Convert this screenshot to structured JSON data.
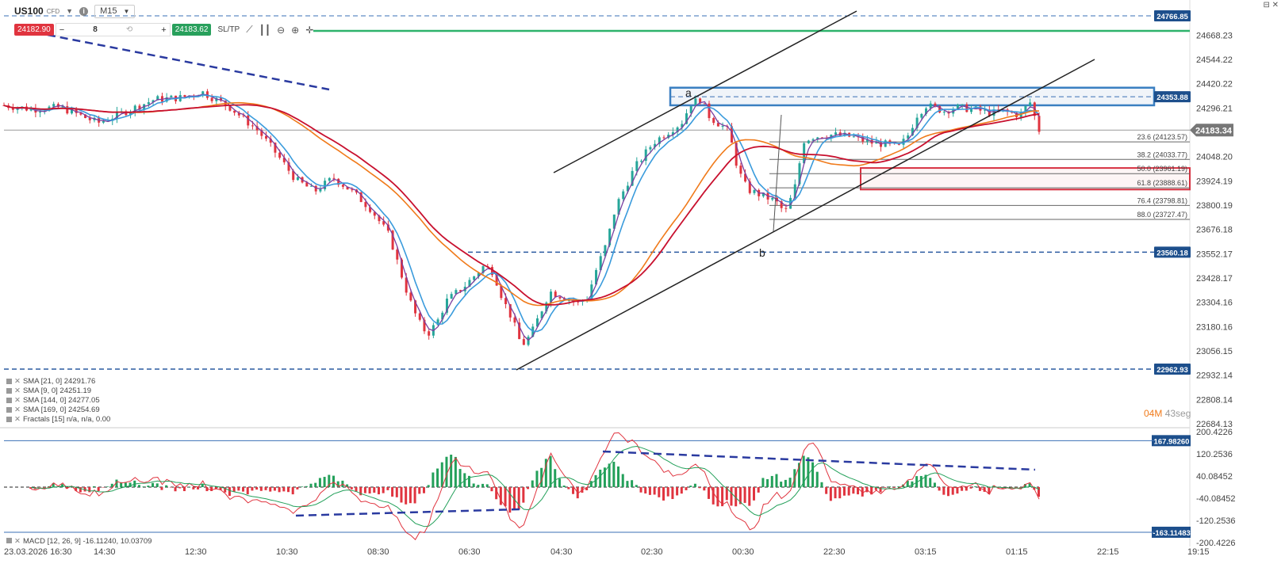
{
  "toolbar": {
    "symbol": "US100",
    "symbol_type": "CFD",
    "timeframe": "M15",
    "sell_price": "24182.90",
    "buy_price": "24183.62",
    "quantity": "8",
    "sltp_label": "SL/TP",
    "minus": "−",
    "plus": "+"
  },
  "window_controls": "⊟ ✕",
  "legend": [
    "SMA [21, 0] 24291.76",
    "SMA [9, 0] 24251.19",
    "SMA [144, 0] 24277.05",
    "SMA [169, 0] 24254.69",
    "Fractals [15] n/a, n/a, 0.00"
  ],
  "macd_legend": "MACD [12, 26, 9] -16.11240, 10.03709",
  "countdown": {
    "minutes": "04M",
    "seconds": "43seg"
  },
  "price_axis": [
    "24668.23",
    "24544.22",
    "24420.22",
    "24296.21",
    "24048.20",
    "23924.19",
    "23800.19",
    "23676.18",
    "23552.17",
    "23428.17",
    "23304.16",
    "23180.16",
    "23056.15",
    "22932.14",
    "22808.14",
    "22684.13"
  ],
  "price_labels": {
    "top_line": "24766.85",
    "resistance": "24353.88",
    "current": "24183.34",
    "mid_support": "23560.18",
    "low_support": "22962.93"
  },
  "macd_axis": [
    "200.4226",
    "120.2536",
    "40.08452",
    "-40.08452",
    "-120.2536",
    "-200.4226"
  ],
  "macd_labels": {
    "upper": "167.98260",
    "lower": "-163.11483"
  },
  "time_axis": [
    "23.03.2026 16:30",
    "14:30",
    "12:30",
    "10:30",
    "08:30",
    "06:30",
    "04:30",
    "02:30",
    "00:30",
    "22:30",
    "03:15",
    "01:15",
    "22:15",
    "19:15"
  ],
  "fib_levels": [
    "23.6 (24123.57)",
    "38.2 (24033.77)",
    "50.0 (23961.19)",
    "61.8 (23888.61)",
    "76.4 (23798.81)",
    "88.0 (23727.47)"
  ],
  "wave_labels": {
    "a": "a",
    "b": "b"
  },
  "colors": {
    "bull": "#26a69a",
    "bear": "#e0343f",
    "sma9": "#7b3fa0",
    "sma21": "#3a9bdc",
    "sma144": "#f07a1a",
    "sma169": "#c8102e",
    "trend_dash": "#2a3aa0",
    "axis_badge": "#1d4f8c",
    "green_line": "#2db36b"
  },
  "chart_data": {
    "type": "line",
    "title": "",
    "x_ticks": [
      "23.03.2026 16:30",
      "14:30",
      "12:30",
      "10:30",
      "08:30",
      "06:30",
      "04:30",
      "02:30",
      "00:30",
      "22:30",
      "03:15",
      "01:15",
      "22:15",
      "19:15"
    ],
    "ylim": [
      22684.13,
      24768
    ],
    "close_path": [
      [
        0,
        24310
      ],
      [
        3,
        24290
      ],
      [
        6,
        24300
      ],
      [
        8,
        24260
      ],
      [
        10,
        24220
      ],
      [
        12,
        24260
      ],
      [
        14,
        24300
      ],
      [
        16,
        24340
      ],
      [
        19,
        24350
      ],
      [
        21,
        24380
      ],
      [
        24,
        24300
      ],
      [
        27,
        24180
      ],
      [
        29,
        24060
      ],
      [
        31,
        23930
      ],
      [
        33,
        23870
      ],
      [
        35,
        23940
      ],
      [
        37,
        23870
      ],
      [
        39,
        23780
      ],
      [
        41,
        23640
      ],
      [
        42,
        23480
      ],
      [
        43,
        23330
      ],
      [
        44,
        23210
      ],
      [
        45,
        23140
      ],
      [
        46,
        23200
      ],
      [
        47,
        23310
      ],
      [
        49,
        23390
      ],
      [
        51,
        23490
      ],
      [
        52,
        23460
      ],
      [
        53,
        23320
      ],
      [
        54,
        23220
      ],
      [
        55,
        23080
      ],
      [
        56,
        23140
      ],
      [
        57,
        23250
      ],
      [
        58,
        23360
      ],
      [
        60,
        23320
      ],
      [
        61,
        23300
      ],
      [
        62,
        23330
      ],
      [
        63,
        23480
      ],
      [
        64,
        23600
      ],
      [
        65,
        23790
      ],
      [
        67,
        23990
      ],
      [
        69,
        24120
      ],
      [
        71,
        24190
      ],
      [
        72,
        24220
      ],
      [
        73,
        24320
      ],
      [
        74,
        24340
      ],
      [
        75,
        24250
      ],
      [
        77,
        24180
      ],
      [
        78,
        23980
      ],
      [
        79,
        23880
      ],
      [
        80,
        23860
      ],
      [
        82,
        23820
      ],
      [
        83,
        23760
      ],
      [
        84,
        23880
      ],
      [
        85,
        24130
      ],
      [
        86,
        24150
      ],
      [
        88,
        24160
      ],
      [
        90,
        24150
      ],
      [
        92,
        24120
      ],
      [
        94,
        24110
      ],
      [
        95,
        24090
      ],
      [
        96,
        24150
      ],
      [
        97,
        24260
      ],
      [
        98,
        24310
      ],
      [
        100,
        24280
      ],
      [
        101,
        24300
      ],
      [
        103,
        24290
      ],
      [
        105,
        24270
      ],
      [
        106,
        24280
      ],
      [
        108,
        24260
      ],
      [
        109,
        24330
      ],
      [
        110,
        24183
      ]
    ],
    "series": [
      {
        "name": "SMA [9, 0]",
        "value": 24251.19
      },
      {
        "name": "SMA [21, 0]",
        "value": 24291.76
      },
      {
        "name": "SMA [144, 0]",
        "value": 24277.05
      },
      {
        "name": "SMA [169, 0]",
        "value": 24254.69
      }
    ]
  }
}
